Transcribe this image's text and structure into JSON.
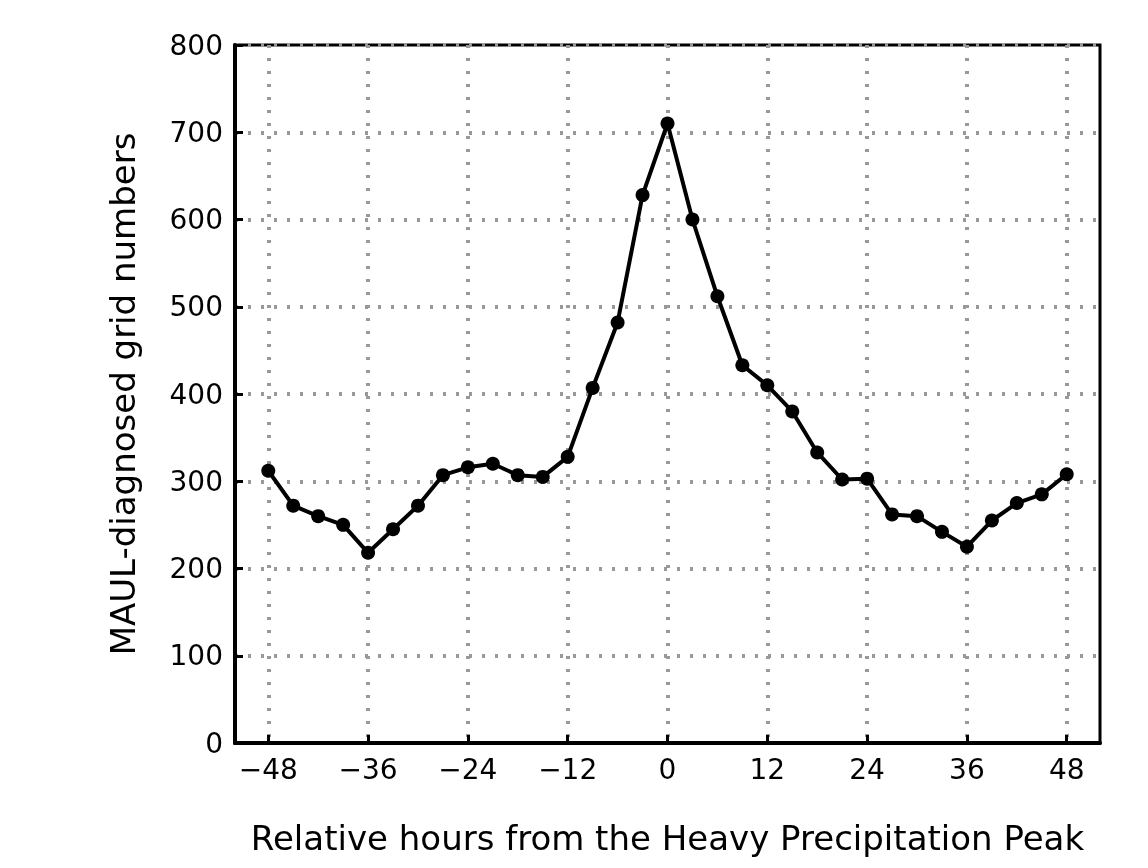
{
  "chart_data": {
    "type": "line",
    "xlabel": "Relative hours from the Heavy Precipitation Peak",
    "ylabel": "MAUL-diagnosed grid numbers",
    "x": [
      -48,
      -45,
      -42,
      -39,
      -36,
      -33,
      -30,
      -27,
      -24,
      -21,
      -18,
      -15,
      -12,
      -9,
      -6,
      -3,
      0,
      3,
      6,
      9,
      12,
      15,
      18,
      21,
      24,
      27,
      30,
      33,
      36,
      39,
      42,
      45,
      48
    ],
    "series": [
      {
        "color": "#000000",
        "values": [
          312,
          272,
          260,
          250,
          218,
          245,
          272,
          307,
          316,
          320,
          307,
          305,
          328,
          407,
          482,
          628,
          710,
          600,
          512,
          433,
          410,
          380,
          333,
          302,
          303,
          262,
          260,
          242,
          225,
          255,
          275,
          285,
          308
        ]
      }
    ],
    "xlim": [
      -52,
      52
    ],
    "xticks": [
      -48,
      -36,
      -24,
      -12,
      0,
      12,
      24,
      36,
      48
    ],
    "ylim": [
      0,
      800
    ],
    "yticks": [
      0,
      100,
      200,
      300,
      400,
      500,
      600,
      700,
      800
    ],
    "grid": true,
    "marker": "circle",
    "line_style": "solid"
  }
}
